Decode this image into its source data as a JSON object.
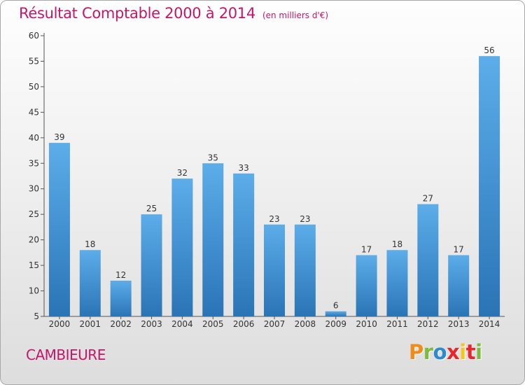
{
  "header": {
    "title": "Résultat Comptable 2000 à 2014",
    "unit": "(en milliers d'€)"
  },
  "footer": {
    "commune": "CAMBIEURE",
    "logo_text": "Proxiti",
    "logo_colors": [
      "#f08c1a",
      "#7dbb3e",
      "#2a8bd0",
      "#e8262c",
      "#f5c518",
      "#e8262c",
      "#7dbb3e"
    ]
  },
  "colors": {
    "bar_light": "#5cadea",
    "bar_dark": "#2a74b6",
    "accent": "#c4166a"
  },
  "chart_data": {
    "type": "bar",
    "categories": [
      "2000",
      "2001",
      "2002",
      "2003",
      "2004",
      "2005",
      "2006",
      "2007",
      "2008",
      "2009",
      "2010",
      "2011",
      "2012",
      "2013",
      "2014"
    ],
    "values": [
      39,
      18,
      12,
      25,
      32,
      35,
      33,
      23,
      23,
      6,
      17,
      18,
      27,
      17,
      56
    ],
    "data_labels": [
      "39",
      "18",
      "12",
      "25",
      "32",
      "35",
      "33",
      "23",
      "23",
      "6",
      "17",
      "18",
      "27",
      "17",
      "56"
    ],
    "yticks": [
      5,
      10,
      15,
      20,
      25,
      30,
      35,
      40,
      45,
      50,
      55,
      60
    ],
    "ylim": [
      5,
      60
    ],
    "title": "Résultat Comptable 2000 à 2014",
    "xlabel": "",
    "ylabel": "",
    "grid": false,
    "legend": "none"
  }
}
